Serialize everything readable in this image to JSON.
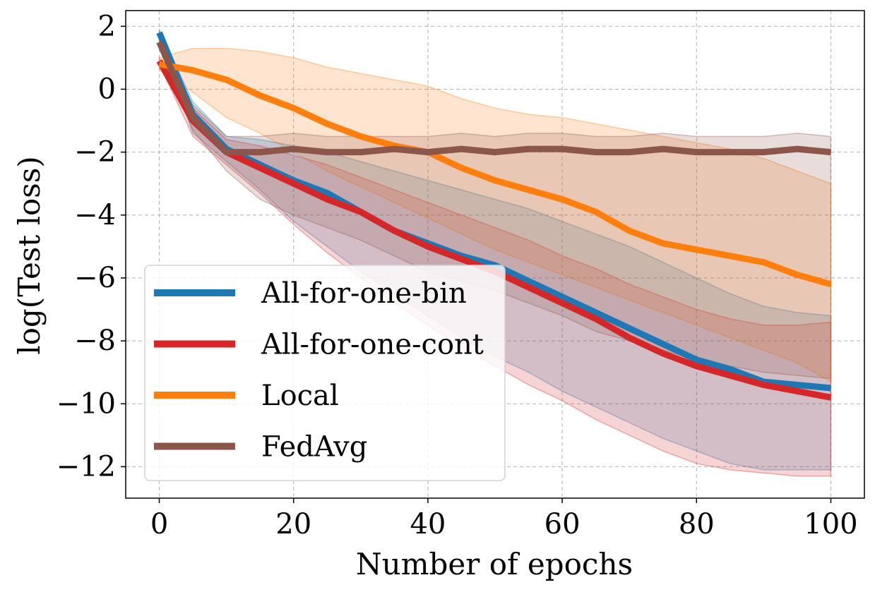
{
  "chart_data": {
    "type": "line",
    "title": "",
    "xlabel": "Number of epochs",
    "ylabel": "log(Test loss)",
    "xlim": [
      -5,
      105
    ],
    "ylim": [
      -13,
      2.5
    ],
    "xticks": [
      0,
      20,
      40,
      60,
      80,
      100
    ],
    "yticks": [
      2,
      0,
      -2,
      -4,
      -6,
      -8,
      -10,
      -12
    ],
    "xtick_labels": [
      "0",
      "20",
      "40",
      "60",
      "80",
      "100"
    ],
    "ytick_labels": [
      "2",
      "0",
      "−2",
      "−4",
      "−6",
      "−8",
      "−10",
      "−12"
    ],
    "grid": true,
    "legend_position": "lower-left",
    "series": [
      {
        "name": "All-for-one-bin",
        "color": "#1f77b4",
        "x": [
          0,
          5,
          10,
          15,
          20,
          25,
          30,
          35,
          40,
          45,
          50,
          55,
          60,
          65,
          70,
          75,
          80,
          85,
          90,
          95,
          100
        ],
        "values": [
          1.8,
          -0.8,
          -1.9,
          -2.4,
          -2.9,
          -3.3,
          -3.9,
          -4.5,
          -4.9,
          -5.3,
          -5.6,
          -6.1,
          -6.6,
          -7.1,
          -7.6,
          -8.1,
          -8.6,
          -8.9,
          -9.3,
          -9.4,
          -9.5
        ],
        "band_upper": [
          1.9,
          -0.4,
          -1.5,
          -1.6,
          -1.8,
          -2.0,
          -2.3,
          -2.6,
          -2.9,
          -3.2,
          -3.5,
          -3.8,
          -4.2,
          -4.6,
          -5.0,
          -5.5,
          -6.0,
          -6.5,
          -6.9,
          -7.1,
          -7.2
        ],
        "band_lower": [
          1.6,
          -1.4,
          -2.3,
          -3.2,
          -4.2,
          -5.0,
          -5.8,
          -6.5,
          -7.2,
          -7.9,
          -8.5,
          -9.0,
          -9.6,
          -10.1,
          -10.6,
          -11.1,
          -11.5,
          -11.9,
          -12.1,
          -12.1,
          -12.1
        ]
      },
      {
        "name": "All-for-one-cont",
        "color": "#d62728",
        "x": [
          0,
          5,
          10,
          15,
          20,
          25,
          30,
          35,
          40,
          45,
          50,
          55,
          60,
          65,
          70,
          75,
          80,
          85,
          90,
          95,
          100
        ],
        "values": [
          0.9,
          -1.0,
          -2.0,
          -2.5,
          -3.0,
          -3.5,
          -3.9,
          -4.5,
          -5.0,
          -5.4,
          -5.8,
          -6.3,
          -6.8,
          -7.3,
          -7.9,
          -8.4,
          -8.8,
          -9.1,
          -9.4,
          -9.6,
          -9.8
        ],
        "band_upper": [
          1.0,
          -0.6,
          -1.6,
          -1.8,
          -2.1,
          -2.4,
          -2.8,
          -3.2,
          -3.6,
          -4.0,
          -4.4,
          -4.8,
          -5.3,
          -5.7,
          -6.2,
          -6.6,
          -7.0,
          -7.3,
          -7.5,
          -7.5,
          -7.4
        ],
        "band_lower": [
          0.8,
          -1.5,
          -2.4,
          -3.3,
          -4.3,
          -5.2,
          -6.0,
          -6.8,
          -7.5,
          -8.2,
          -8.8,
          -9.4,
          -9.9,
          -10.5,
          -11.0,
          -11.5,
          -11.9,
          -12.1,
          -12.2,
          -12.3,
          -12.3
        ]
      },
      {
        "name": "Local",
        "color": "#ff7f0e",
        "x": [
          0,
          5,
          10,
          15,
          20,
          25,
          30,
          35,
          40,
          45,
          50,
          55,
          60,
          65,
          70,
          75,
          80,
          85,
          90,
          95,
          100
        ],
        "values": [
          0.8,
          0.6,
          0.3,
          -0.2,
          -0.6,
          -1.1,
          -1.5,
          -1.8,
          -2.0,
          -2.5,
          -2.9,
          -3.2,
          -3.5,
          -3.9,
          -4.5,
          -4.9,
          -5.1,
          -5.3,
          -5.5,
          -5.9,
          -6.2
        ],
        "band_upper": [
          1.0,
          1.3,
          1.3,
          1.2,
          1.0,
          0.7,
          0.5,
          0.3,
          0.1,
          -0.3,
          -0.6,
          -0.8,
          -0.9,
          -1.1,
          -1.3,
          -1.5,
          -1.7,
          -1.9,
          -2.2,
          -2.6,
          -3.0
        ],
        "band_lower": [
          0.6,
          -0.1,
          -0.9,
          -1.4,
          -2.0,
          -2.6,
          -3.1,
          -3.6,
          -4.1,
          -4.6,
          -5.1,
          -5.5,
          -5.9,
          -6.3,
          -6.7,
          -7.1,
          -7.5,
          -7.9,
          -8.3,
          -8.7,
          -9.3
        ]
      },
      {
        "name": "FedAvg",
        "color": "#8c564b",
        "x": [
          0,
          5,
          10,
          15,
          20,
          25,
          30,
          35,
          40,
          45,
          50,
          55,
          60,
          65,
          70,
          75,
          80,
          85,
          90,
          95,
          100
        ],
        "values": [
          1.5,
          -0.9,
          -2.0,
          -2.0,
          -1.9,
          -2.0,
          -2.0,
          -1.9,
          -2.0,
          -1.9,
          -2.0,
          -1.9,
          -1.9,
          -2.0,
          -2.0,
          -1.9,
          -2.0,
          -2.0,
          -2.0,
          -1.9,
          -2.0
        ],
        "band_upper": [
          1.7,
          -0.5,
          -1.5,
          -1.5,
          -1.4,
          -1.5,
          -1.5,
          -1.5,
          -1.5,
          -1.4,
          -1.5,
          -1.4,
          -1.4,
          -1.5,
          -1.5,
          -1.4,
          -1.5,
          -1.5,
          -1.5,
          -1.4,
          -1.5
        ],
        "band_lower": [
          1.3,
          -1.3,
          -2.6,
          -3.5,
          -4.0,
          -4.4,
          -4.8,
          -5.3,
          -5.8,
          -6.1,
          -6.4,
          -6.8,
          -7.2,
          -7.7,
          -8.0,
          -8.3,
          -8.6,
          -8.8,
          -9.0,
          -9.1,
          -9.2
        ]
      }
    ]
  }
}
